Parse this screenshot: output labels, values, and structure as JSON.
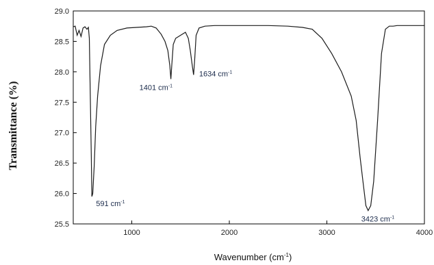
{
  "chart_data": {
    "type": "line",
    "title": "",
    "xlabel": {
      "base": "Wavenumber (cm",
      "sup": "-1",
      "tail": ")"
    },
    "ylabel": "Transmittance (%)",
    "xlim": [
      400,
      4000
    ],
    "ylim": [
      25.5,
      29.0
    ],
    "xticks": [
      "1000",
      "2000",
      "3000",
      "4000"
    ],
    "yticks": [
      "25.5",
      "26.0",
      "26.5",
      "27.0",
      "27.5",
      "28.0",
      "28.5",
      "29.0"
    ],
    "grid": false,
    "series": [
      {
        "x": [
          400,
          420,
          440,
          460,
          480,
          500,
          520,
          540,
          555,
          565,
          575,
          585,
          591,
          600,
          615,
          630,
          650,
          680,
          720,
          780,
          850,
          950,
          1050,
          1150,
          1200,
          1250,
          1300,
          1340,
          1370,
          1390,
          1401,
          1410,
          1425,
          1450,
          1500,
          1550,
          1580,
          1600,
          1620,
          1634,
          1645,
          1660,
          1690,
          1750,
          1850,
          2000,
          2200,
          2400,
          2600,
          2750,
          2850,
          2950,
          3050,
          3150,
          3250,
          3300,
          3340,
          3370,
          3400,
          3423,
          3450,
          3480,
          3520,
          3560,
          3600,
          3640,
          3680,
          3720,
          3800,
          3900,
          4000
        ],
        "y": [
          28.74,
          28.75,
          28.6,
          28.68,
          28.58,
          28.72,
          28.74,
          28.7,
          28.73,
          28.55,
          27.6,
          26.6,
          25.95,
          26.0,
          26.45,
          27.1,
          27.6,
          28.1,
          28.45,
          28.6,
          28.68,
          28.72,
          28.73,
          28.74,
          28.75,
          28.72,
          28.62,
          28.5,
          28.35,
          28.1,
          27.88,
          28.1,
          28.45,
          28.55,
          28.6,
          28.65,
          28.55,
          28.35,
          28.1,
          27.95,
          28.2,
          28.6,
          28.72,
          28.75,
          28.76,
          28.76,
          28.76,
          28.76,
          28.75,
          28.73,
          28.7,
          28.55,
          28.3,
          28.0,
          27.6,
          27.2,
          26.6,
          26.2,
          25.8,
          25.72,
          25.8,
          26.2,
          27.2,
          28.3,
          28.7,
          28.75,
          28.75,
          28.76,
          28.76,
          28.76,
          28.76
        ]
      }
    ],
    "annotations": [
      {
        "label": "591",
        "x": 591,
        "y": 25.95
      },
      {
        "label": "1401",
        "x": 1401,
        "y": 27.88
      },
      {
        "label": "1634",
        "x": 1634,
        "y": 27.95
      },
      {
        "label": "3423",
        "x": 3423,
        "y": 25.72
      }
    ],
    "annotation_unit": {
      "base": "cm",
      "sup": "-1"
    }
  }
}
